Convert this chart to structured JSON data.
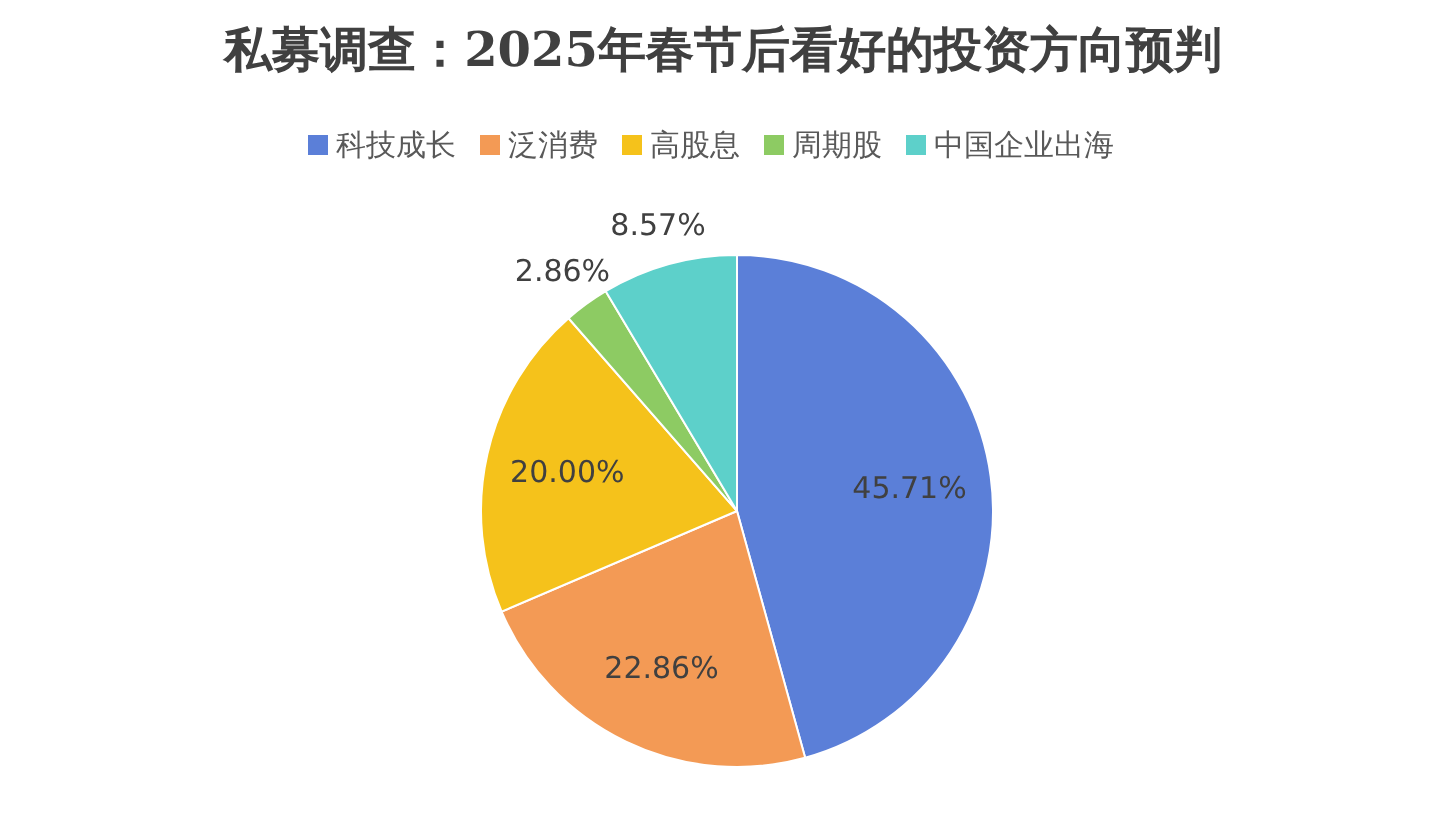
{
  "chart_data": {
    "type": "pie",
    "title": "私募调查：2025年春节后看好的投资方向预判",
    "categories": [
      "科技成长",
      "泛消费",
      "高股息",
      "周期股",
      "中国企业出海"
    ],
    "values": [
      45.71,
      22.86,
      20.0,
      2.86,
      8.57
    ],
    "value_labels": [
      "45.71%",
      "22.86%",
      "20.00%",
      "2.86%",
      "8.57%"
    ],
    "colors": [
      "#5b7fd8",
      "#f39a55",
      "#f5c21b",
      "#8dcb63",
      "#5dd0ca"
    ],
    "legend": "top"
  }
}
